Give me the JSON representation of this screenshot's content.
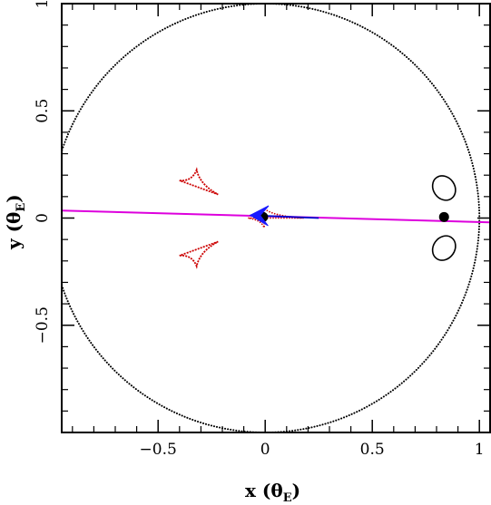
{
  "chart_data": {
    "type": "scatter",
    "title": "",
    "xlabel": "x (θ",
    "xlabel_sub": "E",
    "xlabel_close": ")",
    "ylabel": "y (θ",
    "ylabel_sub": "E",
    "ylabel_close": ")",
    "xlim": [
      -0.95,
      1.05
    ],
    "ylim": [
      -1.0,
      1.0
    ],
    "grid": false,
    "x_ticks": [
      {
        "value": -0.5,
        "label": "−0.5"
      },
      {
        "value": 0,
        "label": "0"
      },
      {
        "value": 0.5,
        "label": "0.5"
      },
      {
        "value": 1,
        "label": "1"
      }
    ],
    "y_ticks": [
      {
        "value": -0.5,
        "label": "−0.5"
      },
      {
        "value": 0,
        "label": "0"
      },
      {
        "value": 0.5,
        "label": "0.5"
      },
      {
        "value": 1,
        "label": "1"
      }
    ],
    "critical_curve": {
      "style": "dotted",
      "color": "#000000",
      "circle_center": [
        0.0,
        0.0
      ],
      "circle_radius": 1.0,
      "planet_loops": [
        {
          "center": [
            0.835,
            0.14
          ],
          "rx": 0.05,
          "ry": 0.06
        },
        {
          "center": [
            0.835,
            -0.14
          ],
          "rx": 0.05,
          "ry": 0.06
        }
      ]
    },
    "caustics": {
      "color": "#cc0000",
      "central": {
        "center": [
          0.0,
          0.0
        ],
        "cusps": [
          [
            -0.08,
            0.0
          ],
          [
            0.18,
            0.0
          ],
          [
            -0.005,
            0.045
          ],
          [
            -0.005,
            -0.045
          ]
        ]
      },
      "planetary": [
        {
          "center": [
            -0.33,
            0.15
          ],
          "cusps": [
            [
              -0.4,
              0.175
            ],
            [
              -0.32,
              0.225
            ],
            [
              -0.22,
              0.11
            ]
          ]
        },
        {
          "center": [
            -0.33,
            -0.15
          ],
          "cusps": [
            [
              -0.4,
              -0.175
            ],
            [
              -0.32,
              -0.225
            ],
            [
              -0.22,
              -0.11
            ]
          ]
        }
      ]
    },
    "lenses": [
      {
        "name": "",
        "x": -0.01,
        "y": 0.005
      },
      {
        "name": "",
        "x": 0.835,
        "y": 0.005
      }
    ],
    "source_trajectory": {
      "color": "#dd00dd",
      "points": [
        [
          -0.95,
          0.035
        ],
        [
          1.05,
          -0.02
        ]
      ]
    },
    "source_track_segment": {
      "color": "#0000cc",
      "points": [
        [
          -0.07,
          0.013
        ],
        [
          0.25,
          0.0
        ]
      ]
    },
    "source_arrow": {
      "color": "#1a1aff",
      "tip": [
        -0.07,
        0.013
      ],
      "direction": [
        -1,
        0.0275
      ]
    }
  }
}
